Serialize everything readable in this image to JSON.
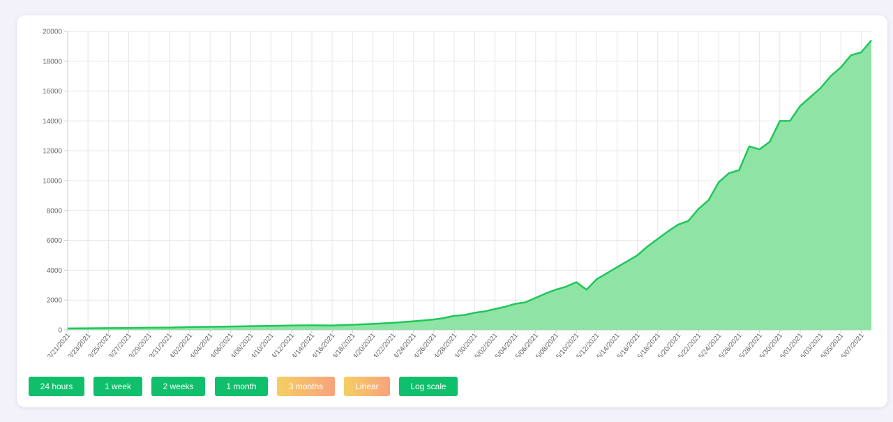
{
  "colors": {
    "line": "#1ec759",
    "fill": "#8fe3a5",
    "grid": "#e6e6e6",
    "button_green": "#0fbf6b",
    "button_orange_start": "#f5cf62",
    "button_orange_end": "#f8a27c"
  },
  "buttons": [
    {
      "label": "24 hours",
      "style": "green",
      "active": false
    },
    {
      "label": "1 week",
      "style": "green",
      "active": false
    },
    {
      "label": "2 weeks",
      "style": "green",
      "active": false
    },
    {
      "label": "1 month",
      "style": "green",
      "active": false
    },
    {
      "label": "3 months",
      "style": "orange",
      "active": true
    },
    {
      "label": "Linear",
      "style": "orange",
      "active": true
    },
    {
      "label": "Log scale",
      "style": "green",
      "active": false
    }
  ],
  "chart_data": {
    "type": "area",
    "title": "",
    "xlabel": "",
    "ylabel": "",
    "grid": true,
    "legend": "none",
    "ylim": [
      0,
      20000
    ],
    "xlim": [
      "03/21/2021",
      "06/08/2021"
    ],
    "y_ticks": [
      "0",
      "2000",
      "4000",
      "6000",
      "8000",
      "10000",
      "12000",
      "14000",
      "16000",
      "18000",
      "20000"
    ],
    "x_ticks": [
      "03/21/2021",
      "03/23/2021",
      "03/25/2021",
      "03/27/2021",
      "03/29/2021",
      "03/31/2021",
      "04/02/2021",
      "04/04/2021",
      "04/06/2021",
      "04/08/2021",
      "04/10/2021",
      "04/12/2021",
      "04/14/2021",
      "04/16/2021",
      "04/18/2021",
      "04/20/2021",
      "04/22/2021",
      "04/24/2021",
      "04/26/2021",
      "04/28/2021",
      "04/30/2021",
      "05/02/2021",
      "05/04/2021",
      "05/06/2021",
      "05/08/2021",
      "05/10/2021",
      "05/12/2021",
      "05/14/2021",
      "05/16/2021",
      "05/18/2021",
      "05/20/2021",
      "05/22/2021",
      "05/24/2021",
      "05/26/2021",
      "05/28/2021",
      "05/30/2021",
      "06/01/2021",
      "06/03/2021",
      "06/05/2021",
      "06/07/2021"
    ],
    "series": [
      {
        "x": [
          "03/21/2021",
          "03/23/2021",
          "03/25/2021",
          "03/27/2021",
          "03/29/2021",
          "03/31/2021",
          "04/02/2021",
          "04/04/2021",
          "04/06/2021",
          "04/08/2021",
          "04/10/2021",
          "04/12/2021",
          "04/14/2021",
          "04/16/2021",
          "04/18/2021",
          "04/20/2021",
          "04/22/2021",
          "04/24/2021",
          "04/26/2021",
          "04/27/2021",
          "04/28/2021",
          "04/29/2021",
          "04/30/2021",
          "05/01/2021",
          "05/02/2021",
          "05/03/2021",
          "05/04/2021",
          "05/05/2021",
          "05/06/2021",
          "05/07/2021",
          "05/08/2021",
          "05/09/2021",
          "05/10/2021",
          "05/11/2021",
          "05/12/2021",
          "05/13/2021",
          "05/14/2021",
          "05/15/2021",
          "05/16/2021",
          "05/17/2021",
          "05/18/2021",
          "05/19/2021",
          "05/20/2021",
          "05/21/2021",
          "05/22/2021",
          "05/23/2021",
          "05/24/2021",
          "05/25/2021",
          "05/26/2021",
          "05/27/2021",
          "05/28/2021",
          "05/29/2021",
          "05/30/2021",
          "05/31/2021",
          "06/01/2021",
          "06/02/2021",
          "06/03/2021",
          "06/04/2021",
          "06/05/2021",
          "06/06/2021",
          "06/07/2021",
          "06/08/2021"
        ],
        "y": [
          100,
          110,
          120,
          130,
          150,
          160,
          190,
          210,
          230,
          250,
          270,
          300,
          310,
          300,
          350,
          400,
          480,
          580,
          700,
          800,
          950,
          1000,
          1150,
          1250,
          1400,
          1550,
          1750,
          1850,
          2150,
          2450,
          2700,
          2900,
          3200,
          2700,
          3400,
          3800,
          4200,
          4600,
          5000,
          5600,
          6100,
          6600,
          7050,
          7300,
          8100,
          8700,
          9900,
          10500,
          10700,
          12300,
          12100,
          12600,
          14000,
          14000,
          15000,
          15600,
          16200,
          17000,
          17600,
          18400,
          18600,
          19400
        ]
      }
    ]
  }
}
